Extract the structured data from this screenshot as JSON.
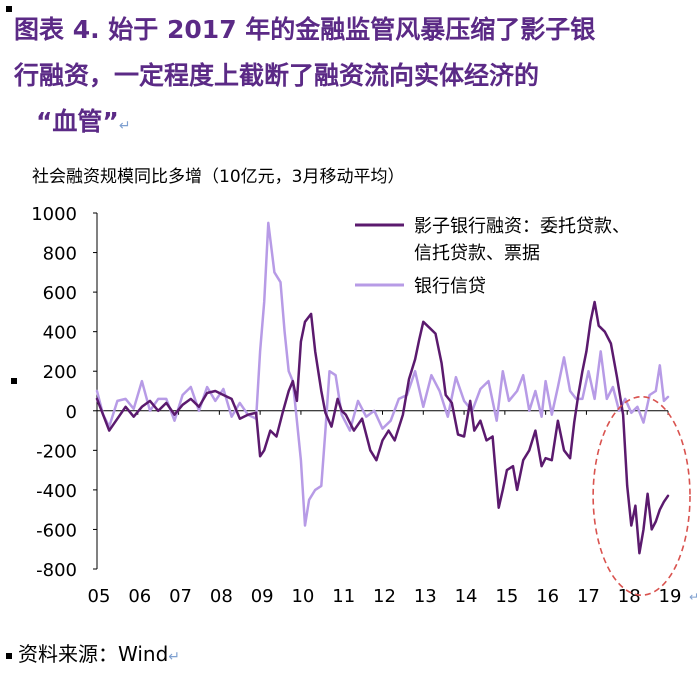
{
  "title": {
    "line1": "图表  4.  始于 2017 年的金融监管风暴压缩了影子银",
    "line2": "行融资，一定程度上截断了融资流向实体经济的",
    "line3": "“血管”"
  },
  "return_mark": "↵",
  "source": {
    "text": "资料来源：Wind"
  },
  "colors": {
    "shadow": "#5b1a6e",
    "loan": "#b79be6",
    "highlight": "#d9534f",
    "title": "#5b2a86"
  },
  "chart_data": {
    "type": "line",
    "ylabel": "社会融资规模同比多增（10亿元，3月移动平均）",
    "ylim": [
      -800,
      1000
    ],
    "yticks": [
      1000,
      800,
      600,
      400,
      200,
      0,
      -200,
      -400,
      -600,
      -800
    ],
    "xlim": [
      2005,
      2019
    ],
    "xticks": [
      {
        "x": 2005,
        "label": "05"
      },
      {
        "x": 2006,
        "label": "06"
      },
      {
        "x": 2007,
        "label": "07"
      },
      {
        "x": 2008,
        "label": "08"
      },
      {
        "x": 2009,
        "label": "09"
      },
      {
        "x": 2010,
        "label": "10"
      },
      {
        "x": 2011,
        "label": "11"
      },
      {
        "x": 2012,
        "label": "12"
      },
      {
        "x": 2013,
        "label": "13"
      },
      {
        "x": 2014,
        "label": "14"
      },
      {
        "x": 2015,
        "label": "15"
      },
      {
        "x": 2016,
        "label": "16"
      },
      {
        "x": 2017,
        "label": "17"
      },
      {
        "x": 2018,
        "label": "18"
      },
      {
        "x": 2019,
        "label": "19"
      }
    ],
    "grid": false,
    "legend_position": "top-right",
    "series": [
      {
        "name": "影子银行融资：委托贷款、信托贷款、票据",
        "legend_lines": [
          "影子银行融资：委托贷款、",
          "信托贷款、票据"
        ],
        "color": "#5b1a6e",
        "points": [
          [
            2005.0,
            60
          ],
          [
            2005.15,
            -20
          ],
          [
            2005.3,
            -100
          ],
          [
            2005.5,
            -40
          ],
          [
            2005.7,
            20
          ],
          [
            2005.9,
            -30
          ],
          [
            2006.1,
            20
          ],
          [
            2006.3,
            50
          ],
          [
            2006.5,
            0
          ],
          [
            2006.7,
            40
          ],
          [
            2006.9,
            -20
          ],
          [
            2007.1,
            30
          ],
          [
            2007.3,
            60
          ],
          [
            2007.5,
            20
          ],
          [
            2007.7,
            90
          ],
          [
            2007.9,
            100
          ],
          [
            2008.1,
            80
          ],
          [
            2008.3,
            60
          ],
          [
            2008.5,
            -40
          ],
          [
            2008.7,
            -20
          ],
          [
            2008.9,
            -10
          ],
          [
            2009.0,
            -230
          ],
          [
            2009.1,
            -200
          ],
          [
            2009.25,
            -100
          ],
          [
            2009.4,
            -130
          ],
          [
            2009.55,
            -10
          ],
          [
            2009.7,
            100
          ],
          [
            2009.8,
            150
          ],
          [
            2009.9,
            50
          ],
          [
            2010.0,
            350
          ],
          [
            2010.1,
            450
          ],
          [
            2010.25,
            490
          ],
          [
            2010.35,
            300
          ],
          [
            2010.5,
            100
          ],
          [
            2010.6,
            -10
          ],
          [
            2010.75,
            -80
          ],
          [
            2010.9,
            60
          ],
          [
            2011.0,
            0
          ],
          [
            2011.1,
            -20
          ],
          [
            2011.3,
            -100
          ],
          [
            2011.5,
            -40
          ],
          [
            2011.7,
            -200
          ],
          [
            2011.85,
            -250
          ],
          [
            2012.0,
            -150
          ],
          [
            2012.15,
            -100
          ],
          [
            2012.3,
            -150
          ],
          [
            2012.5,
            -20
          ],
          [
            2012.65,
            160
          ],
          [
            2012.8,
            260
          ],
          [
            2012.9,
            360
          ],
          [
            2013.0,
            450
          ],
          [
            2013.15,
            420
          ],
          [
            2013.3,
            390
          ],
          [
            2013.45,
            240
          ],
          [
            2013.55,
            80
          ],
          [
            2013.7,
            40
          ],
          [
            2013.85,
            -120
          ],
          [
            2014.0,
            -130
          ],
          [
            2014.15,
            50
          ],
          [
            2014.25,
            -100
          ],
          [
            2014.4,
            -50
          ],
          [
            2014.55,
            -150
          ],
          [
            2014.7,
            -130
          ],
          [
            2014.85,
            -490
          ],
          [
            2014.95,
            -400
          ],
          [
            2015.05,
            -300
          ],
          [
            2015.2,
            -280
          ],
          [
            2015.3,
            -400
          ],
          [
            2015.45,
            -250
          ],
          [
            2015.6,
            -200
          ],
          [
            2015.75,
            -100
          ],
          [
            2015.9,
            -280
          ],
          [
            2016.0,
            -240
          ],
          [
            2016.15,
            -250
          ],
          [
            2016.3,
            -50
          ],
          [
            2016.45,
            -200
          ],
          [
            2016.6,
            -240
          ],
          [
            2016.7,
            -60
          ],
          [
            2016.8,
            80
          ],
          [
            2016.9,
            200
          ],
          [
            2017.0,
            300
          ],
          [
            2017.1,
            450
          ],
          [
            2017.2,
            550
          ],
          [
            2017.3,
            430
          ],
          [
            2017.45,
            400
          ],
          [
            2017.6,
            340
          ],
          [
            2017.75,
            170
          ],
          [
            2017.9,
            -20
          ],
          [
            2018.0,
            -380
          ],
          [
            2018.1,
            -580
          ],
          [
            2018.2,
            -480
          ],
          [
            2018.3,
            -720
          ],
          [
            2018.4,
            -600
          ],
          [
            2018.5,
            -420
          ],
          [
            2018.6,
            -600
          ],
          [
            2018.7,
            -560
          ],
          [
            2018.8,
            -500
          ],
          [
            2018.9,
            -460
          ],
          [
            2019.0,
            -430
          ]
        ]
      },
      {
        "name": "银行信贷",
        "legend_lines": [
          "银行信贷"
        ],
        "color": "#b79be6",
        "points": [
          [
            2005.0,
            100
          ],
          [
            2005.15,
            -20
          ],
          [
            2005.3,
            -80
          ],
          [
            2005.5,
            50
          ],
          [
            2005.7,
            60
          ],
          [
            2005.9,
            10
          ],
          [
            2006.1,
            150
          ],
          [
            2006.3,
            0
          ],
          [
            2006.5,
            60
          ],
          [
            2006.7,
            60
          ],
          [
            2006.9,
            -50
          ],
          [
            2007.1,
            80
          ],
          [
            2007.3,
            120
          ],
          [
            2007.5,
            0
          ],
          [
            2007.7,
            120
          ],
          [
            2007.9,
            50
          ],
          [
            2008.1,
            110
          ],
          [
            2008.3,
            -30
          ],
          [
            2008.5,
            40
          ],
          [
            2008.7,
            -20
          ],
          [
            2008.9,
            -40
          ],
          [
            2009.0,
            300
          ],
          [
            2009.1,
            550
          ],
          [
            2009.2,
            950
          ],
          [
            2009.35,
            700
          ],
          [
            2009.5,
            650
          ],
          [
            2009.6,
            400
          ],
          [
            2009.7,
            200
          ],
          [
            2009.8,
            150
          ],
          [
            2009.9,
            -50
          ],
          [
            2010.0,
            -250
          ],
          [
            2010.1,
            -580
          ],
          [
            2010.2,
            -450
          ],
          [
            2010.35,
            -400
          ],
          [
            2010.5,
            -380
          ],
          [
            2010.6,
            -100
          ],
          [
            2010.7,
            200
          ],
          [
            2010.85,
            180
          ],
          [
            2011.0,
            -20
          ],
          [
            2011.2,
            -100
          ],
          [
            2011.4,
            50
          ],
          [
            2011.6,
            -30
          ],
          [
            2011.8,
            0
          ],
          [
            2012.0,
            -90
          ],
          [
            2012.2,
            -50
          ],
          [
            2012.4,
            60
          ],
          [
            2012.6,
            80
          ],
          [
            2012.8,
            200
          ],
          [
            2013.0,
            20
          ],
          [
            2013.2,
            180
          ],
          [
            2013.4,
            100
          ],
          [
            2013.6,
            -30
          ],
          [
            2013.8,
            170
          ],
          [
            2014.0,
            50
          ],
          [
            2014.2,
            0
          ],
          [
            2014.4,
            110
          ],
          [
            2014.6,
            150
          ],
          [
            2014.8,
            -50
          ],
          [
            2014.95,
            200
          ],
          [
            2015.1,
            50
          ],
          [
            2015.3,
            100
          ],
          [
            2015.45,
            180
          ],
          [
            2015.6,
            0
          ],
          [
            2015.75,
            100
          ],
          [
            2015.9,
            -30
          ],
          [
            2016.0,
            150
          ],
          [
            2016.15,
            -20
          ],
          [
            2016.3,
            120
          ],
          [
            2016.45,
            270
          ],
          [
            2016.6,
            100
          ],
          [
            2016.75,
            60
          ],
          [
            2016.9,
            60
          ],
          [
            2017.05,
            200
          ],
          [
            2017.2,
            60
          ],
          [
            2017.35,
            300
          ],
          [
            2017.5,
            60
          ],
          [
            2017.65,
            120
          ],
          [
            2017.8,
            0
          ],
          [
            2017.95,
            60
          ],
          [
            2018.1,
            -10
          ],
          [
            2018.25,
            20
          ],
          [
            2018.4,
            -60
          ],
          [
            2018.55,
            80
          ],
          [
            2018.7,
            100
          ],
          [
            2018.8,
            230
          ],
          [
            2018.9,
            50
          ],
          [
            2019.0,
            70
          ]
        ]
      }
    ]
  }
}
